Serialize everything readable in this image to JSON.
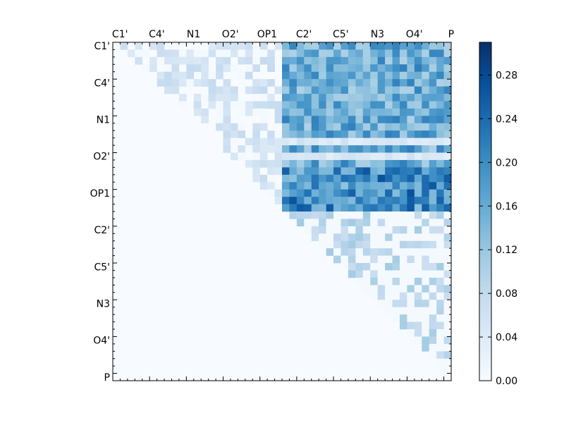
{
  "chart_data": {
    "type": "heatmap",
    "tick_labels": [
      "C1'",
      "C4'",
      "N1",
      "O2'",
      "OP1",
      "C2'",
      "C5'",
      "N3",
      "O4'",
      "P"
    ],
    "grid_size": 46,
    "upper_triangle_only": true,
    "row_blocks": [
      {
        "rows": [
          0,
          23
        ],
        "cols": [
          0,
          23
        ],
        "level": 0.05
      },
      {
        "rows": [
          0,
          23
        ],
        "cols": [
          23,
          46
        ],
        "level": 0.18
      },
      {
        "rows": [
          17,
          23
        ],
        "cols": [
          23,
          46
        ],
        "level": 0.23
      },
      {
        "rows": [
          23,
          46
        ],
        "cols": [
          23,
          46
        ],
        "level": 0.045
      }
    ],
    "colorbar": {
      "min": 0.0,
      "max": 0.31,
      "ticks": [
        "0.00",
        "0.04",
        "0.08",
        "0.12",
        "0.16",
        "0.20",
        "0.24",
        "0.28"
      ],
      "tick_values": [
        0.0,
        0.04,
        0.08,
        0.12,
        0.16,
        0.2,
        0.24,
        0.28
      ],
      "colormap": "Blues",
      "low_color": "#f7fbff",
      "high_color": "#08306b"
    }
  }
}
